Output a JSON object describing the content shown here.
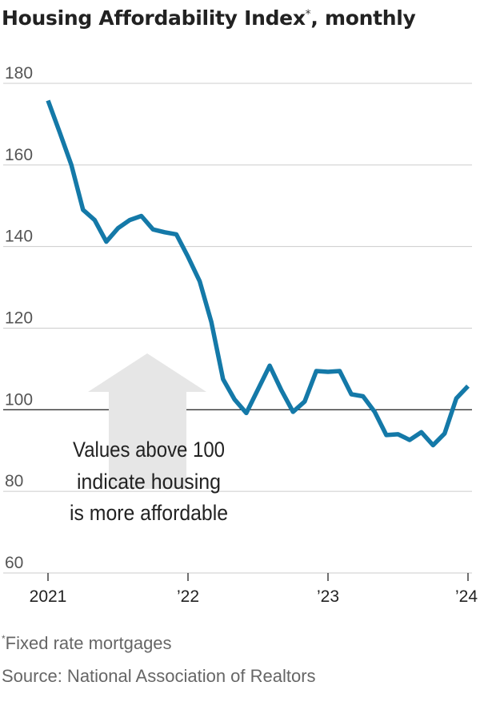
{
  "title": "Housing Affordability Index",
  "title_mark": "*",
  "title_suffix": ", monthly",
  "footnote_mark": "*",
  "footnote": "Fixed rate mortgages",
  "source": "Source: National Association of Realtors",
  "colors": {
    "line": "#1479a8",
    "arrow": "#e6e6e6",
    "grid": "#cccccc",
    "reference": "#333333"
  },
  "chart_data": {
    "type": "line",
    "title": "Housing Affordability Index*, monthly",
    "xlabel": "",
    "ylabel": "",
    "ylim": [
      60,
      180
    ],
    "yticks": [
      180,
      160,
      140,
      120,
      100,
      80,
      60
    ],
    "xticks": [
      {
        "date": "2021-01",
        "label": "2021"
      },
      {
        "date": "2022-01",
        "label": "’22"
      },
      {
        "date": "2023-01",
        "label": "’23"
      },
      {
        "date": "2024-01",
        "label": "’24"
      }
    ],
    "reference_line": 100,
    "annotation": [
      "Values above 100",
      "indicate housing",
      "is more affordable"
    ],
    "grid": true,
    "series": [
      {
        "x": [
          "2021-01",
          "2021-02",
          "2021-03",
          "2021-04",
          "2021-05",
          "2021-06",
          "2021-07",
          "2021-08",
          "2021-09",
          "2021-10",
          "2021-11",
          "2021-12",
          "2022-01",
          "2022-02",
          "2022-03",
          "2022-04",
          "2022-05",
          "2022-06",
          "2022-07",
          "2022-08",
          "2022-09",
          "2022-10",
          "2022-11",
          "2022-12",
          "2023-01",
          "2023-02",
          "2023-03",
          "2023-04",
          "2023-05",
          "2023-06",
          "2023-07",
          "2023-08",
          "2023-09",
          "2023-10",
          "2023-11",
          "2023-12",
          "2024-01"
        ],
        "values": [
          175.8,
          168.0,
          160.0,
          149.0,
          146.5,
          141.2,
          144.5,
          146.5,
          147.5,
          144.2,
          143.5,
          143.0,
          137.5,
          131.5,
          121.5,
          107.5,
          102.5,
          99.2,
          105.0,
          110.8,
          104.8,
          99.5,
          102.0,
          109.5,
          109.3,
          109.5,
          103.8,
          103.3,
          99.5,
          93.8,
          94.0,
          92.6,
          94.5,
          91.3,
          94.2,
          102.8,
          105.8
        ]
      }
    ]
  }
}
